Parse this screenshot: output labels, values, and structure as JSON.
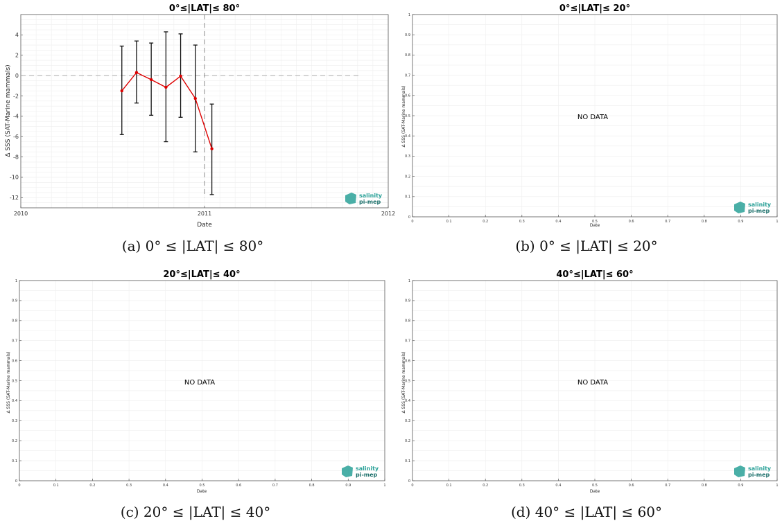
{
  "logo": {
    "line1": "salinity",
    "line2": "pi-mep",
    "color": "#2aa198"
  },
  "chart_data": [
    {
      "type": "line",
      "title": "0°≤|LAT|≤ 80°",
      "caption": "(a) 0° ≤ |LAT| ≤ 80°",
      "xlabel": "Date",
      "ylabel": "Δ SSS (SAT-Marine mammals)",
      "xlim": [
        2010,
        2012
      ],
      "ylim": [
        -13,
        6
      ],
      "x_ticks": [
        2010,
        2011,
        2012
      ],
      "y_ticks": [
        4,
        2,
        0,
        -2,
        -4,
        -6,
        -8,
        -10,
        -12
      ],
      "zero_line": 0,
      "vline_x": 2011.0,
      "line_color": "#dd0000",
      "errorbar_color": "#111111",
      "grid": true,
      "series": [
        {
          "x": [
            2010.55,
            2010.63,
            2010.71,
            2010.79,
            2010.87,
            2010.95,
            2011.04
          ],
          "values": [
            -1.5,
            0.3,
            -0.4,
            -1.15,
            -0.05,
            -2.25,
            -7.2
          ],
          "err_low": [
            -5.8,
            -2.7,
            -3.9,
            -6.5,
            -4.1,
            -7.5,
            -11.7
          ],
          "err_high": [
            2.9,
            3.4,
            3.2,
            4.3,
            4.1,
            3.0,
            -2.8
          ]
        }
      ]
    },
    {
      "type": "line",
      "title": "0°≤|LAT|≤ 20°",
      "caption": "(b) 0° ≤ |LAT| ≤ 20°",
      "xlabel": "Date",
      "ylabel": "Δ SSS (SAT-Marine mammals)",
      "xlim": [
        0,
        1
      ],
      "ylim": [
        0,
        1
      ],
      "x_ticks": [
        "0",
        "0.1",
        "0.2",
        "0.3",
        "0.4",
        "0.5",
        "0.6",
        "0.7",
        "0.8",
        "0.9",
        "1"
      ],
      "y_ticks": [
        "0",
        "0.1",
        "0.2",
        "0.3",
        "0.4",
        "0.5",
        "0.6",
        "0.7",
        "0.8",
        "0.9",
        "1"
      ],
      "grid": true,
      "annotation": "NO DATA",
      "series": []
    },
    {
      "type": "line",
      "title": "20°≤|LAT|≤ 40°",
      "caption": "(c) 20° ≤ |LAT| ≤ 40°",
      "xlabel": "Date",
      "ylabel": "Δ SSS (SAT-Marine mammals)",
      "xlim": [
        0,
        1
      ],
      "ylim": [
        0,
        1
      ],
      "x_ticks": [
        "0",
        "0.1",
        "0.2",
        "0.3",
        "0.4",
        "0.5",
        "0.6",
        "0.7",
        "0.8",
        "0.9",
        "1"
      ],
      "y_ticks": [
        "0",
        "0.1",
        "0.2",
        "0.3",
        "0.4",
        "0.5",
        "0.6",
        "0.7",
        "0.8",
        "0.9",
        "1"
      ],
      "grid": true,
      "annotation": "NO DATA",
      "series": []
    },
    {
      "type": "line",
      "title": "40°≤|LAT|≤ 60°",
      "caption": "(d) 40° ≤ |LAT| ≤ 60°",
      "xlabel": "Date",
      "ylabel": "Δ SSS (SAT-Marine mammals)",
      "xlim": [
        0,
        1
      ],
      "ylim": [
        0,
        1
      ],
      "x_ticks": [
        "0",
        "0.1",
        "0.2",
        "0.3",
        "0.4",
        "0.5",
        "0.6",
        "0.7",
        "0.8",
        "0.9",
        "1"
      ],
      "y_ticks": [
        "0",
        "0.1",
        "0.2",
        "0.3",
        "0.4",
        "0.5",
        "0.6",
        "0.7",
        "0.8",
        "0.9",
        "1"
      ],
      "grid": true,
      "annotation": "NO DATA",
      "series": []
    }
  ]
}
